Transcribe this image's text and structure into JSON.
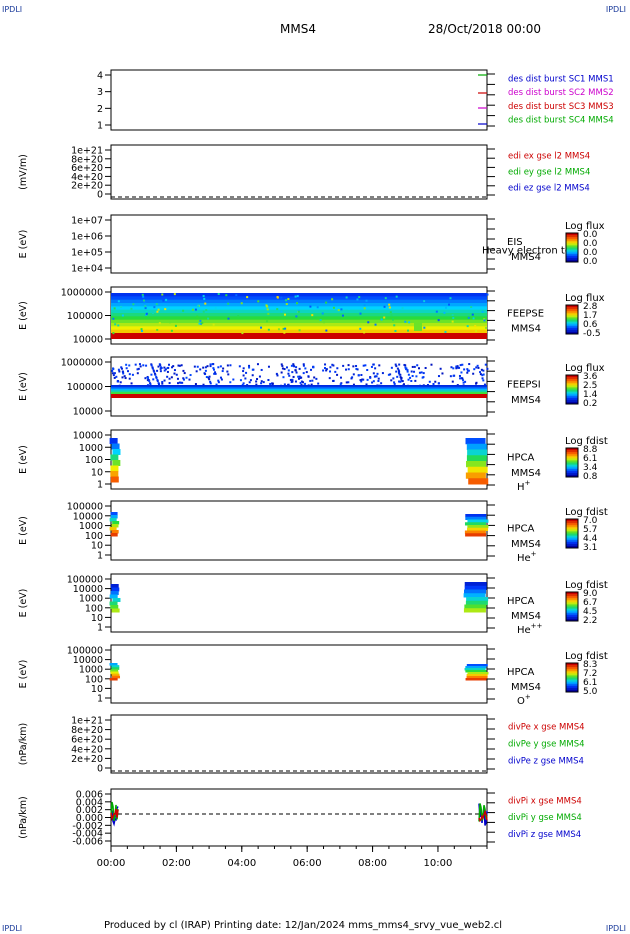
{
  "corner_label": "IPDLI",
  "header": {
    "spacecraft": "MMS4",
    "date": "28/Oct/2018 00:00"
  },
  "footer": "Produced by cl (IRAP)   Printing date: 12/Jan/2024   mms_mms4_srvy_vue_web2.cl",
  "colors": {
    "axis": "#000000",
    "red": "#cc0000",
    "green": "#00aa00",
    "blue": "#0000cc",
    "magenta": "#cc00cc"
  },
  "chart_data": [
    {
      "id": "burst",
      "type": "line",
      "y_ticks": [
        "4",
        "3",
        "2",
        "1"
      ],
      "legend": [
        {
          "text": "des dist burst SC1 MMS1",
          "color": "#0000cc"
        },
        {
          "text": "des dist burst SC2 MMS2",
          "color": "#cc00cc"
        },
        {
          "text": "des dist burst SC3 MMS3",
          "color": "#cc0000"
        },
        {
          "text": "des dist burst SC4 MMS4",
          "color": "#00aa00"
        }
      ]
    },
    {
      "id": "edi",
      "type": "line",
      "ylabel": "(mV/m)",
      "y_ticks": [
        "1e+21",
        "8e+20",
        "6e+20",
        "4e+20",
        "2e+20",
        "0"
      ],
      "legend": [
        {
          "text": "edi ex gse l2 MMS4",
          "color": "#cc0000"
        },
        {
          "text": "edi ey gse l2 MMS4",
          "color": "#00aa00"
        },
        {
          "text": "edi ez gse l2 MMS4",
          "color": "#0000cc"
        }
      ]
    },
    {
      "id": "eis",
      "type": "heatmap",
      "ylabel": "E (eV)",
      "y_ticks": [
        "1e+07",
        "1e+06",
        "1e+05",
        "1e+04"
      ],
      "name": "EIS",
      "extra": "Heavy electron to",
      "sc": "MMS4",
      "cb_title": "Log flux",
      "cb_ticks": [
        "0.0",
        "0.0",
        "0.0",
        "0.0"
      ]
    },
    {
      "id": "feepse",
      "type": "heatmap",
      "ylabel": "E (eV)",
      "y_ticks": [
        "1000000",
        "100000",
        "10000"
      ],
      "name": "FEEPSE",
      "sc": "MMS4",
      "cb_title": "Log flux",
      "cb_ticks": [
        "2.8",
        "1.7",
        "0.6",
        "-0.5"
      ]
    },
    {
      "id": "feepsi",
      "type": "heatmap",
      "ylabel": "E (eV)",
      "y_ticks": [
        "1000000",
        "100000",
        "10000"
      ],
      "name": "FEEPSI",
      "sc": "MMS4",
      "cb_title": "Log flux",
      "cb_ticks": [
        "3.6",
        "2.5",
        "1.4",
        "0.2"
      ]
    },
    {
      "id": "hpca_h",
      "type": "heatmap",
      "ylabel": "E (eV)",
      "y_ticks": [
        "10000",
        "1000",
        "100",
        "10",
        "1"
      ],
      "name": "HPCA",
      "sc": "MMS4",
      "species": "H",
      "sup": "+",
      "cb_title": "Log fdist",
      "cb_ticks": [
        "8.8",
        "6.1",
        "3.4",
        "0.8"
      ]
    },
    {
      "id": "hpca_he",
      "type": "heatmap",
      "ylabel": "E (eV)",
      "y_ticks": [
        "100000",
        "10000",
        "1000",
        "100",
        "10",
        "1"
      ],
      "name": "HPCA",
      "sc": "MMS4",
      "species": "He",
      "sup": "+",
      "cb_title": "Log fdist",
      "cb_ticks": [
        "7.0",
        "5.7",
        "4.4",
        "3.1"
      ]
    },
    {
      "id": "hpca_he2",
      "type": "heatmap",
      "ylabel": "E (eV)",
      "y_ticks": [
        "100000",
        "10000",
        "1000",
        "100",
        "10",
        "1"
      ],
      "name": "HPCA",
      "sc": "MMS4",
      "species": "He",
      "sup": "++",
      "cb_title": "Log fdist",
      "cb_ticks": [
        "9.0",
        "6.7",
        "4.5",
        "2.2"
      ]
    },
    {
      "id": "hpca_o",
      "type": "heatmap",
      "ylabel": "E (eV)",
      "y_ticks": [
        "100000",
        "10000",
        "1000",
        "100",
        "10",
        "1"
      ],
      "name": "HPCA",
      "sc": "MMS4",
      "species": "O",
      "sup": "+",
      "cb_title": "Log fdist",
      "cb_ticks": [
        "8.3",
        "7.2",
        "6.1",
        "5.0"
      ]
    },
    {
      "id": "divpe",
      "type": "line",
      "ylabel": "(nPa/km)",
      "y_ticks": [
        "1e+21",
        "8e+20",
        "6e+20",
        "4e+20",
        "2e+20",
        "0"
      ],
      "legend": [
        {
          "text": "divPe x gse MMS4",
          "color": "#cc0000"
        },
        {
          "text": "divPe y gse MMS4",
          "color": "#00aa00"
        },
        {
          "text": "divPe z gse MMS4",
          "color": "#0000cc"
        }
      ]
    },
    {
      "id": "divpi",
      "type": "line",
      "ylabel": "(nPa/km)",
      "y_ticks": [
        "0.006",
        "0.004",
        "0.002",
        "0.000",
        "-0.002",
        "-0.004",
        "-0.006"
      ],
      "legend": [
        {
          "text": "divPi x gse MMS4",
          "color": "#cc0000"
        },
        {
          "text": "divPi y gse MMS4",
          "color": "#00aa00"
        },
        {
          "text": "divPi z gse MMS4",
          "color": "#0000cc"
        }
      ],
      "x_ticks": [
        "00:00",
        "02:00",
        "04:00",
        "06:00",
        "08:00",
        "10:00"
      ],
      "xlim": [
        "00:00",
        "11:30"
      ]
    }
  ]
}
